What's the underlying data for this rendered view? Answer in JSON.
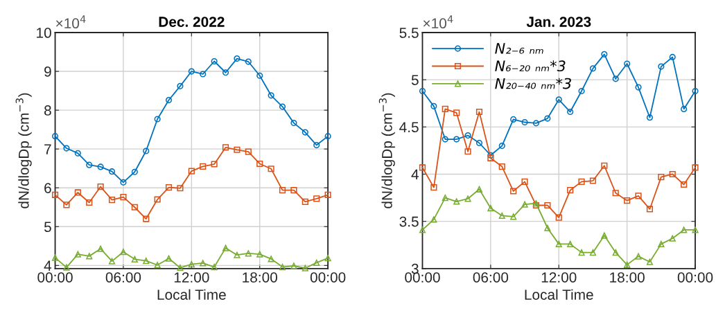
{
  "chart_data": [
    {
      "type": "line",
      "title": "Dec. 2022",
      "xlabel": "Local Time",
      "ylabel": "dN/dlogDp (cm$^{−3}$)",
      "annotations": [
        "×10$^{4}$"
      ],
      "x": [
        0,
        1,
        2,
        3,
        4,
        5,
        6,
        7,
        8,
        9,
        10,
        11,
        12,
        13,
        14,
        15,
        16,
        17,
        18,
        19,
        20,
        21,
        22,
        23,
        24
      ],
      "xlim": [
        0,
        24
      ],
      "xticks": [
        {
          "value": 0,
          "label": "00:00"
        },
        {
          "value": 6,
          "label": "06:00"
        },
        {
          "value": 12,
          "label": "12:00"
        },
        {
          "value": 18,
          "label": "18:00"
        },
        {
          "value": 24,
          "label": "00:00"
        }
      ],
      "ylim": [
        3.92,
        10
      ],
      "yticks": [
        4,
        5,
        6,
        7,
        8,
        9,
        10
      ],
      "grid": true,
      "legend": false,
      "series": [
        {
          "color": "#0072bd",
          "marker": "circle",
          "values": [
            7.33,
            7.02,
            6.89,
            6.59,
            6.54,
            6.42,
            6.14,
            6.41,
            6.95,
            7.77,
            8.26,
            8.62,
            9.0,
            8.93,
            9.26,
            8.97,
            9.33,
            9.25,
            8.89,
            8.38,
            8.09,
            7.67,
            7.43,
            7.1,
            7.33
          ]
        },
        {
          "color": "#d95319",
          "marker": "square",
          "values": [
            5.82,
            5.56,
            5.88,
            5.62,
            6.03,
            5.69,
            5.76,
            5.5,
            5.2,
            5.7,
            6.01,
            5.99,
            6.43,
            6.55,
            6.61,
            7.04,
            6.98,
            6.93,
            6.62,
            6.49,
            5.94,
            5.94,
            5.64,
            5.72,
            5.82
          ]
        },
        {
          "color": "#77ac30",
          "marker": "triangle",
          "values": [
            4.2,
            3.95,
            4.29,
            4.24,
            4.43,
            4.11,
            4.35,
            4.16,
            4.12,
            4.01,
            4.18,
            3.94,
            4.03,
            4.06,
            3.96,
            4.45,
            4.27,
            4.31,
            4.29,
            4.17,
            3.96,
            3.99,
            3.93,
            4.07,
            4.19
          ]
        }
      ]
    },
    {
      "type": "line",
      "title": "Jan. 2023",
      "xlabel": "Local Time",
      "ylabel": "dN/dlogDp (cm$^{−3}$)",
      "annotations": [
        "×10$^{4}$"
      ],
      "x": [
        0,
        1,
        2,
        3,
        4,
        5,
        6,
        7,
        8,
        9,
        10,
        11,
        12,
        13,
        14,
        15,
        16,
        17,
        18,
        19,
        20,
        21,
        22,
        23,
        24
      ],
      "xlim": [
        0,
        24
      ],
      "xticks": [
        {
          "value": 0,
          "label": "00:00"
        },
        {
          "value": 6,
          "label": "06:00"
        },
        {
          "value": 12,
          "label": "12:00"
        },
        {
          "value": 18,
          "label": "18:00"
        },
        {
          "value": 24,
          "label": "00:00"
        }
      ],
      "ylim": [
        3,
        5.5
      ],
      "yticks": [
        3,
        3.5,
        4,
        4.5,
        5,
        5.5
      ],
      "grid": true,
      "legend": "top left",
      "series": [
        {
          "name": "N₂₋₆ ₙₘ",
          "color": "#0072bd",
          "marker": "circle",
          "values": [
            4.88,
            4.72,
            4.37,
            4.37,
            4.41,
            4.33,
            4.2,
            4.3,
            4.58,
            4.55,
            4.54,
            4.59,
            4.79,
            4.66,
            4.88,
            5.12,
            5.27,
            5.01,
            5.17,
            4.92,
            4.6,
            5.14,
            5.24,
            4.69,
            4.88
          ]
        },
        {
          "name": "N₆₋₂₀ ₙₘ*3",
          "color": "#d95319",
          "marker": "square",
          "values": [
            4.07,
            3.86,
            4.69,
            4.65,
            4.24,
            4.66,
            4.17,
            4.08,
            3.82,
            3.92,
            3.67,
            3.67,
            3.54,
            3.83,
            3.92,
            3.93,
            4.09,
            3.8,
            3.72,
            3.77,
            3.63,
            3.97,
            4.0,
            3.89,
            4.07
          ]
        },
        {
          "name": "N₂₀₋₄₀ ₙₘ*3",
          "color": "#77ac30",
          "marker": "triangle",
          "values": [
            3.41,
            3.52,
            3.75,
            3.71,
            3.74,
            3.84,
            3.64,
            3.56,
            3.55,
            3.68,
            3.69,
            3.43,
            3.26,
            3.26,
            3.17,
            3.17,
            3.35,
            3.17,
            3.04,
            3.13,
            3.07,
            3.26,
            3.32,
            3.41,
            3.41
          ]
        }
      ]
    }
  ]
}
